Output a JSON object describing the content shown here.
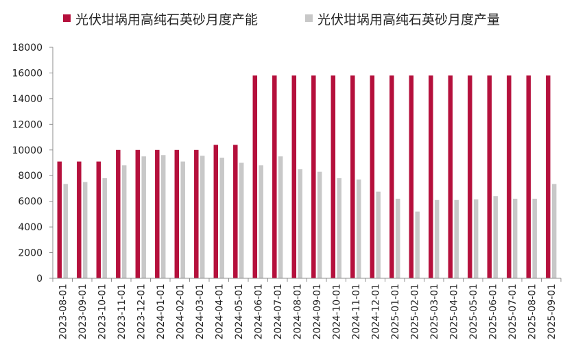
{
  "chart_data": {
    "type": "bar",
    "title": "",
    "xlabel": "",
    "ylabel": "",
    "ylim": [
      0,
      18000
    ],
    "yticks": [
      0,
      2000,
      4000,
      6000,
      8000,
      10000,
      12000,
      14000,
      16000,
      18000
    ],
    "grid": false,
    "legend_position": "top",
    "categories": [
      "2023-08-01",
      "2023-09-01",
      "2023-10-01",
      "2023-11-01",
      "2023-12-01",
      "2024-01-01",
      "2024-02-01",
      "2024-03-01",
      "2024-04-01",
      "2024-05-01",
      "2024-06-01",
      "2024-07-01",
      "2024-08-01",
      "2024-09-01",
      "2024-10-01",
      "2024-11-01",
      "2024-12-01",
      "2025-01-01",
      "2025-02-01",
      "2025-03-01",
      "2025-04-01",
      "2025-05-01",
      "2025-06-01",
      "2025-07-01",
      "2025-08-01",
      "2025-09-01"
    ],
    "series": [
      {
        "name": "光伏坩埚用高纯石英砂月度产能",
        "color": "#b5103c",
        "values": [
          9100,
          9100,
          9100,
          10000,
          10000,
          10000,
          10000,
          10000,
          10400,
          10400,
          15800,
          15800,
          15800,
          15800,
          15800,
          15800,
          15800,
          15800,
          15800,
          15800,
          15800,
          15800,
          15800,
          15800,
          15800,
          15800
        ]
      },
      {
        "name": "光伏坩埚用高纯石英砂月度产量",
        "color": "#c8c8c8",
        "values": [
          7350,
          7500,
          7800,
          8800,
          9500,
          9600,
          9100,
          9550,
          9400,
          9000,
          8800,
          9500,
          8500,
          8300,
          7800,
          7700,
          6750,
          6200,
          5200,
          6100,
          6100,
          6150,
          6400,
          6200,
          6200,
          7350
        ]
      }
    ]
  }
}
